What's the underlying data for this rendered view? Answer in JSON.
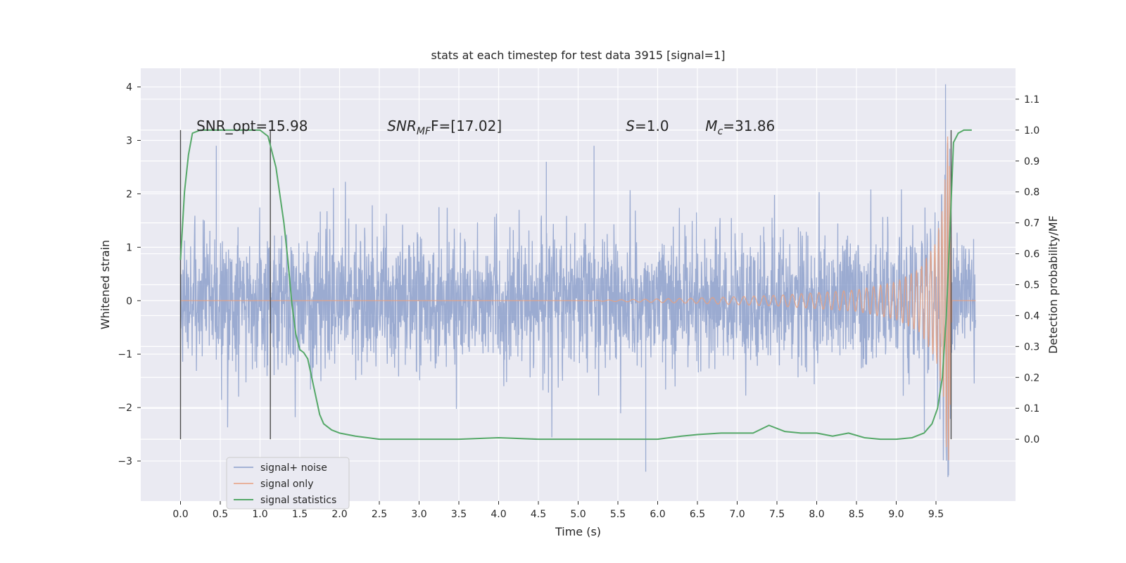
{
  "chart_data": {
    "type": "line",
    "title": "stats at each timestep for test data 3915 [signal=1]",
    "xlabel": "Time (s)",
    "ylabel": "Whitened strain",
    "y2label": "Detection probability/MF",
    "xlim": [
      -0.5,
      10.5
    ],
    "ylim": [
      -3.75,
      4.35
    ],
    "y2lim": [
      -0.2,
      1.2
    ],
    "x_ticks": [
      0.0,
      0.5,
      1.0,
      1.5,
      2.0,
      2.5,
      3.0,
      3.5,
      4.0,
      4.5,
      5.0,
      5.5,
      6.0,
      6.5,
      7.0,
      7.5,
      8.0,
      8.5,
      9.0,
      9.5
    ],
    "x_tick_labels": [
      "0.0",
      "0.5",
      "1.0",
      "1.5",
      "2.0",
      "2.5",
      "3.0",
      "3.5",
      "4.0",
      "4.5",
      "5.0",
      "5.5",
      "6.0",
      "6.5",
      "7.0",
      "7.5",
      "8.0",
      "8.5",
      "9.0",
      "9.5"
    ],
    "y_ticks": [
      -3,
      -2,
      -1,
      0,
      1,
      2,
      3,
      4
    ],
    "y_tick_labels": [
      "−3",
      "−2",
      "−1",
      "0",
      "1",
      "2",
      "3",
      "4"
    ],
    "y2_ticks": [
      0.0,
      0.1,
      0.2,
      0.3,
      0.4,
      0.5,
      0.6,
      0.7,
      0.8,
      0.9,
      1.0,
      1.1
    ],
    "y2_tick_labels": [
      "0.0",
      "0.1",
      "0.2",
      "0.3",
      "0.4",
      "0.5",
      "0.6",
      "0.7",
      "0.8",
      "0.9",
      "1.0",
      "1.1"
    ],
    "grid": true,
    "legend_position": "lower-left",
    "annotations": {
      "snr_opt": "SNR_opt=15.98",
      "snr_mf_label": "SNR",
      "snr_mf_sub": "MF",
      "snr_mf_value": "F=[17.02]",
      "s_label": "S",
      "s_value": "=1.0",
      "mc_label": "M",
      "mc_sub": "c",
      "mc_value": "=31.86"
    },
    "vertical_markers": [
      0.0,
      1.13,
      9.69
    ],
    "series": [
      {
        "name": "signal+ noise",
        "color": "#8da0cb",
        "kind": "noisy-strain",
        "x_range": [
          0.0,
          10.0
        ],
        "typical_amplitude": 1.5,
        "max_observed": 4.05,
        "min_observed": -3.3,
        "description_points": [
          {
            "x": 0.45,
            "y": 2.9
          },
          {
            "x": 4.6,
            "y": 2.6
          },
          {
            "x": 5.2,
            "y": 2.9
          },
          {
            "x": 5.85,
            "y": -3.2
          },
          {
            "x": 9.62,
            "y": 4.05
          },
          {
            "x": 9.65,
            "y": -3.3
          }
        ]
      },
      {
        "name": "signal only",
        "color": "#e8a07f",
        "kind": "chirp",
        "x": [
          0.0,
          5.0,
          6.5,
          7.5,
          8.5,
          9.0,
          9.3,
          9.5,
          9.6,
          9.65,
          9.68,
          9.7,
          10.0
        ],
        "envelope": [
          0.0,
          0.0,
          0.05,
          0.1,
          0.2,
          0.35,
          0.6,
          1.1,
          1.9,
          3.3,
          2.5,
          0.0,
          0.0
        ]
      },
      {
        "name": "signal statistics",
        "color": "#55a868",
        "axis": "right",
        "x": [
          0.0,
          0.05,
          0.1,
          0.15,
          0.25,
          0.5,
          0.8,
          1.0,
          1.1,
          1.2,
          1.3,
          1.35,
          1.4,
          1.45,
          1.5,
          1.55,
          1.6,
          1.65,
          1.7,
          1.75,
          1.8,
          1.9,
          2.0,
          2.2,
          2.5,
          3.0,
          3.5,
          4.0,
          4.5,
          5.0,
          5.5,
          6.0,
          6.3,
          6.5,
          6.8,
          7.0,
          7.2,
          7.4,
          7.6,
          7.8,
          8.0,
          8.2,
          8.4,
          8.6,
          8.8,
          9.0,
          9.2,
          9.35,
          9.45,
          9.52,
          9.58,
          9.63,
          9.68,
          9.72,
          9.78,
          9.85,
          9.9,
          9.95
        ],
        "y": [
          0.58,
          0.8,
          0.92,
          0.99,
          1.0,
          1.0,
          1.0,
          1.0,
          0.98,
          0.88,
          0.7,
          0.58,
          0.44,
          0.34,
          0.29,
          0.28,
          0.26,
          0.2,
          0.14,
          0.08,
          0.05,
          0.03,
          0.02,
          0.01,
          0.0,
          0.0,
          0.0,
          0.005,
          0.0,
          0.0,
          0.0,
          0.0,
          0.01,
          0.015,
          0.02,
          0.02,
          0.02,
          0.045,
          0.025,
          0.02,
          0.02,
          0.01,
          0.02,
          0.005,
          0.0,
          0.0,
          0.005,
          0.02,
          0.05,
          0.1,
          0.2,
          0.4,
          0.7,
          0.96,
          0.99,
          1.0,
          1.0,
          1.0
        ]
      }
    ]
  }
}
